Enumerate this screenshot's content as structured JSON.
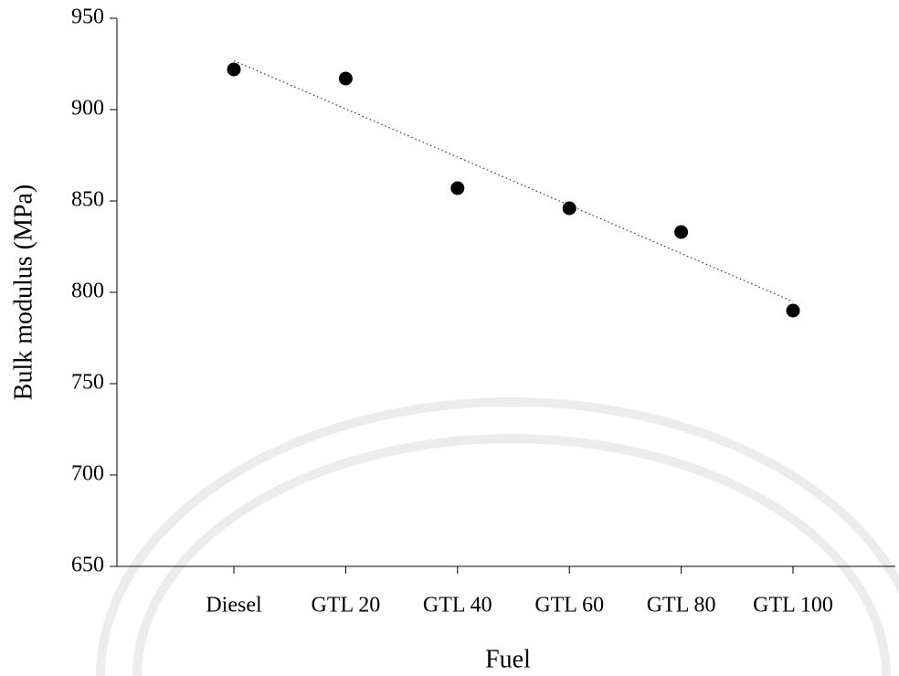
{
  "chart_data": {
    "type": "scatter",
    "x_label": "Fuel",
    "y_label": "Bulk modulus (MPa)",
    "categories": [
      "Diesel",
      "GTL 20",
      "GTL 40",
      "GTL 60",
      "GTL 80",
      "GTL 100"
    ],
    "values": [
      922,
      917,
      857,
      846,
      833,
      790
    ],
    "color": "#000000",
    "trendline": "linear",
    "ylim": [
      650,
      950
    ],
    "yticks": [
      650,
      700,
      750,
      800,
      850,
      900,
      950
    ]
  }
}
